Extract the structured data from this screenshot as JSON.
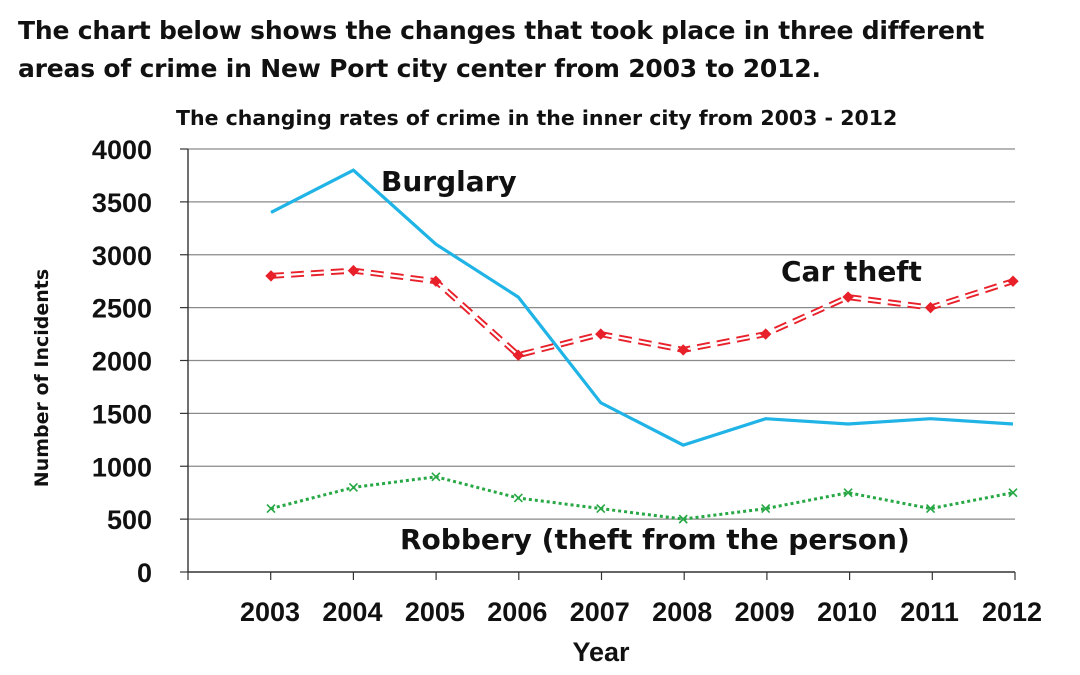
{
  "intro_text": "The chart below shows the changes that took place in three different areas of crime in New Port city center from 2003 to 2012.",
  "chart_data": {
    "type": "line",
    "title": "The changing rates of crime in the inner city from 2003 - 2012",
    "xlabel": "Year",
    "ylabel": "Number of Incidents",
    "categories": [
      "2003",
      "2004",
      "2005",
      "2006",
      "2007",
      "2008",
      "2009",
      "2010",
      "2011",
      "2012"
    ],
    "ylim": [
      0,
      4000
    ],
    "yticks": [
      "0",
      "500",
      "1000",
      "1500",
      "2000",
      "2500",
      "3000",
      "3500",
      "4000"
    ],
    "grid": true,
    "legend": "inline labels",
    "series": [
      {
        "name": "Burglary",
        "color": "#1fb3e6",
        "style": "solid",
        "values": [
          3400,
          3800,
          3100,
          2600,
          1600,
          1200,
          1450,
          1400,
          1450,
          1400
        ]
      },
      {
        "name": "Car theft",
        "color": "#e8202a",
        "style": "dashed-diamond",
        "values": [
          2800,
          2850,
          2750,
          2050,
          2250,
          2100,
          2250,
          2600,
          2500,
          2750
        ]
      },
      {
        "name": "Robbery (theft from the person)",
        "color": "#27a845",
        "style": "dotted-cross",
        "values": [
          600,
          800,
          900,
          700,
          600,
          500,
          600,
          750,
          600,
          750
        ]
      }
    ]
  }
}
